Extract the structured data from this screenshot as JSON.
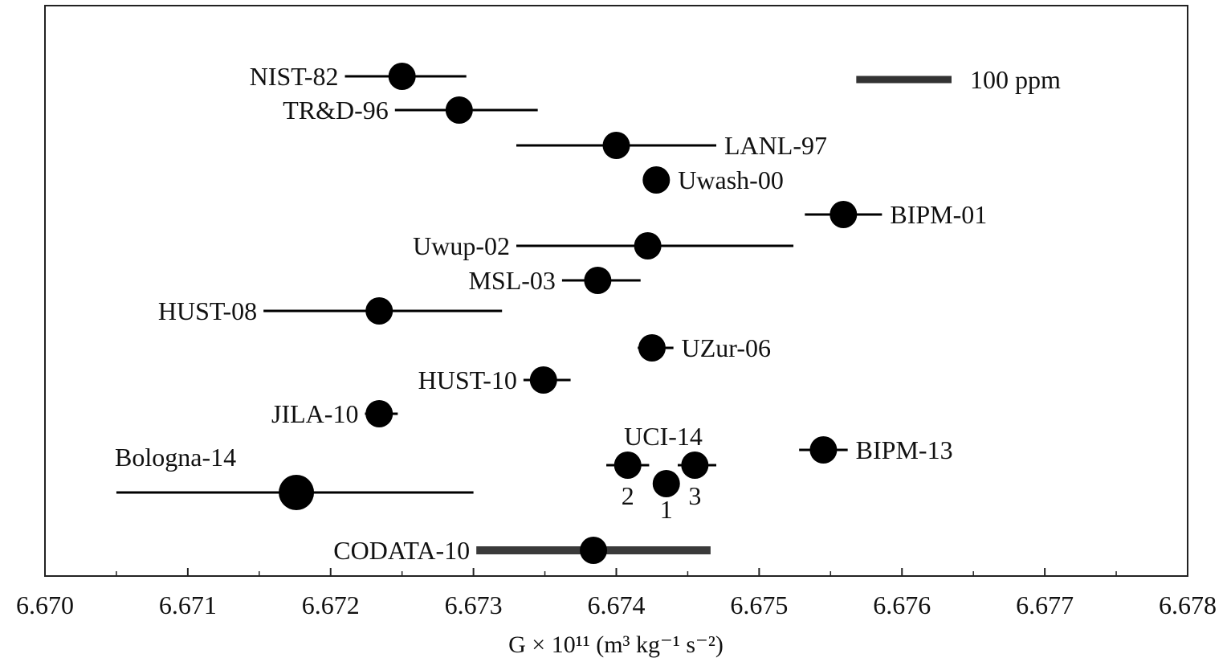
{
  "chart_data": {
    "type": "scatter",
    "title": "",
    "xlabel": "G × 10¹¹ (m³ kg⁻¹ s⁻²)",
    "ylabel": "",
    "xlim": [
      6.67,
      6.678
    ],
    "x_ticks": [
      "6.670",
      "6.671",
      "6.672",
      "6.673",
      "6.674",
      "6.675",
      "6.676",
      "6.677",
      "6.678"
    ],
    "grid": false,
    "scale_bar": {
      "label": "100 ppm",
      "span": 0.000667
    },
    "points": [
      {
        "label": "NIST-82",
        "x": 6.6725,
        "err_low": 6.6721,
        "err_high": 6.67295
      },
      {
        "label": "TR&D-96",
        "x": 6.6729,
        "err_low": 6.67245,
        "err_high": 6.67345
      },
      {
        "label": "LANL-97",
        "x": 6.674,
        "err_low": 6.6733,
        "err_high": 6.6747
      },
      {
        "label": "Uwash-00",
        "x": 6.67428,
        "err_low": 6.67428,
        "err_high": 6.67428
      },
      {
        "label": "BIPM-01",
        "x": 6.67559,
        "err_low": 6.67532,
        "err_high": 6.67586
      },
      {
        "label": "Uwup-02",
        "x": 6.67422,
        "err_low": 6.6733,
        "err_high": 6.67524
      },
      {
        "label": "MSL-03",
        "x": 6.67387,
        "err_low": 6.67362,
        "err_high": 6.67417
      },
      {
        "label": "HUST-08",
        "x": 6.67234,
        "err_low": 6.67153,
        "err_high": 6.6732
      },
      {
        "label": "UZur-06",
        "x": 6.67425,
        "err_low": 6.67415,
        "err_high": 6.6744
      },
      {
        "label": "HUST-10",
        "x": 6.67349,
        "err_low": 6.67335,
        "err_high": 6.67368
      },
      {
        "label": "JILA-10",
        "x": 6.67234,
        "err_low": 6.67224,
        "err_high": 6.67247
      },
      {
        "label": "BIPM-13",
        "x": 6.67545,
        "err_low": 6.67528,
        "err_high": 6.67562
      },
      {
        "label": "Bologna-14",
        "x": 6.67176,
        "err_low": 6.6705,
        "err_high": 6.673,
        "large": true
      },
      {
        "label": "CODATA-10",
        "x": 6.67384,
        "err_low": 6.67302,
        "err_high": 6.67466,
        "thick": true
      }
    ],
    "uci_group": {
      "label": "UCI-14",
      "points": [
        {
          "label": "1",
          "x": 6.67435,
          "err_low": 6.67435,
          "err_high": 6.67435
        },
        {
          "label": "2",
          "x": 6.67408,
          "err_low": 6.67393,
          "err_high": 6.67423
        },
        {
          "label": "3",
          "x": 6.67455,
          "err_low": 6.67443,
          "err_high": 6.6747
        }
      ]
    },
    "colors": {
      "marker": "#000000",
      "scale_bar": "#333333",
      "codata_bar": "#3a3a3a"
    }
  }
}
